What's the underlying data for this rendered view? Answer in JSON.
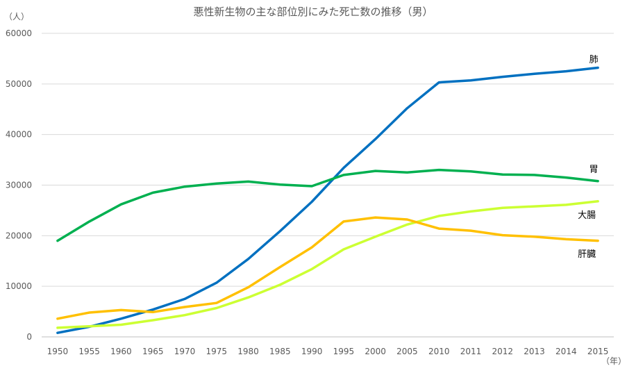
{
  "chart_data": {
    "type": "line",
    "title": "悪性新生物の主な部位別にみた死亡数の推移（男）",
    "y_unit": "（人）",
    "x_unit": "（年）",
    "xlabel": "",
    "ylabel": "",
    "ylim": [
      0,
      60000
    ],
    "y_ticks": [
      0,
      10000,
      20000,
      30000,
      40000,
      50000,
      60000
    ],
    "y_tick_labels": [
      "0",
      "10000",
      "20000",
      "30000",
      "40000",
      "50000",
      "60000"
    ],
    "grid": "horizontal",
    "legend": "labels at line ends (right)",
    "categories": [
      "1950",
      "1955",
      "1960",
      "1965",
      "1970",
      "1975",
      "1980",
      "1985",
      "1990",
      "1995",
      "2000",
      "2005",
      "2010",
      "2011",
      "2012",
      "2013",
      "2014",
      "2015"
    ],
    "series": [
      {
        "name": "肺",
        "color": "#0070C0",
        "values": [
          800,
          2000,
          3600,
          5400,
          7500,
          10700,
          15400,
          20900,
          26700,
          33400,
          39100,
          45200,
          50300,
          50700,
          51400,
          52000,
          52500,
          53200
        ]
      },
      {
        "name": "胃",
        "color": "#00B050",
        "values": [
          19000,
          22800,
          26200,
          28500,
          29700,
          30300,
          30700,
          30100,
          29800,
          32000,
          32800,
          32500,
          33000,
          32700,
          32100,
          32000,
          31500,
          30800
        ]
      },
      {
        "name": "大腸",
        "color": "#CCFF33",
        "values": [
          1800,
          2100,
          2400,
          3300,
          4300,
          5700,
          7800,
          10300,
          13400,
          17300,
          19800,
          22200,
          23900,
          24800,
          25500,
          25800,
          26100,
          26800
        ]
      },
      {
        "name": "肝臓",
        "color": "#FFC000",
        "values": [
          3600,
          4800,
          5300,
          4900,
          5900,
          6700,
          9800,
          13800,
          17700,
          22800,
          23600,
          23200,
          21400,
          21000,
          20100,
          19800,
          19300,
          19000
        ]
      }
    ],
    "series_labels": [
      "肺",
      "胃",
      "大腸",
      "肝臓"
    ]
  }
}
